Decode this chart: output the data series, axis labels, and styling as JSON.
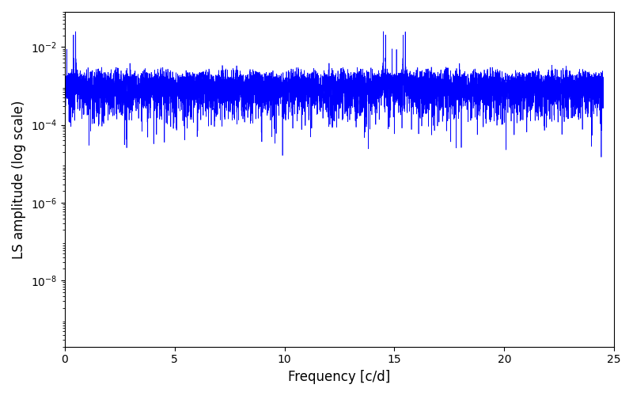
{
  "xlabel": "Frequency [c/d]",
  "ylabel": "LS amplitude (log scale)",
  "line_color": "#0000ff",
  "line_width": 0.5,
  "xlim": [
    0,
    25
  ],
  "ymin": 2e-10,
  "ymax": 0.08,
  "freq_max": 24.5,
  "n_freq": 12000,
  "background_color": "#ffffff",
  "fig_width": 8.0,
  "fig_height": 5.0,
  "dpi": 100,
  "seed": 42,
  "yticks": [
    1e-08,
    1e-06,
    0.0001,
    0.01
  ],
  "xticks": [
    0,
    5,
    10,
    15,
    20,
    25
  ],
  "t_total": 200,
  "n_obs": 1000,
  "signal_freq": 0.5,
  "peak_amp": 0.025
}
